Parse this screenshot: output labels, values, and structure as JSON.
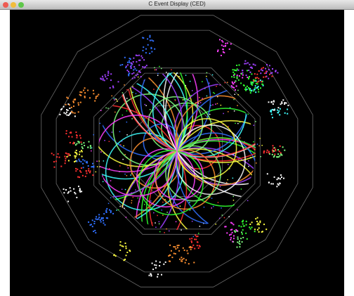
{
  "window": {
    "title": "C Event Display (CED)"
  }
}
